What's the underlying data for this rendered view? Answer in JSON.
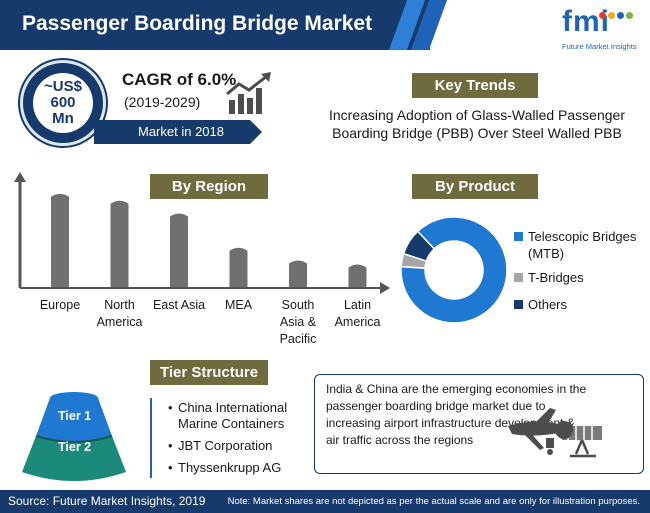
{
  "header": {
    "title": "Passenger Boarding Bridge Market"
  },
  "logo": {
    "mark": "fmi",
    "tagline": "Future Market Insights",
    "dot_colors": [
      "#e63b2e",
      "#f5a623",
      "#1f63b8",
      "#7cb342"
    ]
  },
  "market": {
    "value_lines": [
      "~US$",
      "600",
      "Mn"
    ],
    "cagr": "CAGR of 6.0%",
    "years": "(2019-2029)",
    "label": "Market in 2018"
  },
  "key_trends": {
    "heading": "Key Trends",
    "text": "Increasing Adoption of Glass-Walled Passenger Boarding Bridge (PBB) Over Steel Walled PBB"
  },
  "colors": {
    "navy": "#163a6b",
    "accent_blue": "#1f63b8",
    "olive": "#6f6b3e",
    "bar_gray": "#707070",
    "teal": "#1c8a7a",
    "sky": "#1f78d1"
  },
  "chart_data": [
    {
      "type": "bar",
      "heading": "By Region",
      "categories": [
        "Europe",
        "North America",
        "East Asia",
        "MEA",
        "South Asia & Pacific",
        "Latin America"
      ],
      "category_lines": [
        [
          "Europe"
        ],
        [
          "North",
          "America"
        ],
        [
          "East Asia"
        ],
        [
          "MEA"
        ],
        [
          "South",
          "Asia &",
          "Pacific"
        ],
        [
          "Latin",
          "America"
        ]
      ],
      "values": [
        95,
        88,
        75,
        40,
        27,
        23
      ],
      "grid": false,
      "yaxis": "none"
    },
    {
      "type": "pie",
      "heading": "By Product",
      "labels": [
        "Telescopic Bridges (MTB)",
        "T-Bridges",
        "Others"
      ],
      "label_lines": [
        [
          "Telescopic Bridges",
          "(MTB)"
        ],
        [
          "T-Bridges"
        ],
        [
          "Others"
        ]
      ],
      "values": [
        88,
        4,
        8
      ],
      "colors": [
        "#1f78d1",
        "#a6a6a6",
        "#163a6b"
      ],
      "donut": true,
      "legend": "right"
    }
  ],
  "tier_structure": {
    "heading": "Tier Structure",
    "tiers": [
      "Tier 1",
      "Tier 2"
    ],
    "companies": [
      "China International Marine Containers",
      "JBT Corporation",
      "Thyssenkrupp AG"
    ]
  },
  "info_box": {
    "text": "India & China are the emerging economies in the passenger boarding bridge market due to increasing airport infrastructure development & air traffic across the regions"
  },
  "footer": {
    "source": "Source: Future Market Insights, 2019",
    "note": "Note: Market shares are not depicted as per the actual scale and are only for illustration purposes."
  }
}
